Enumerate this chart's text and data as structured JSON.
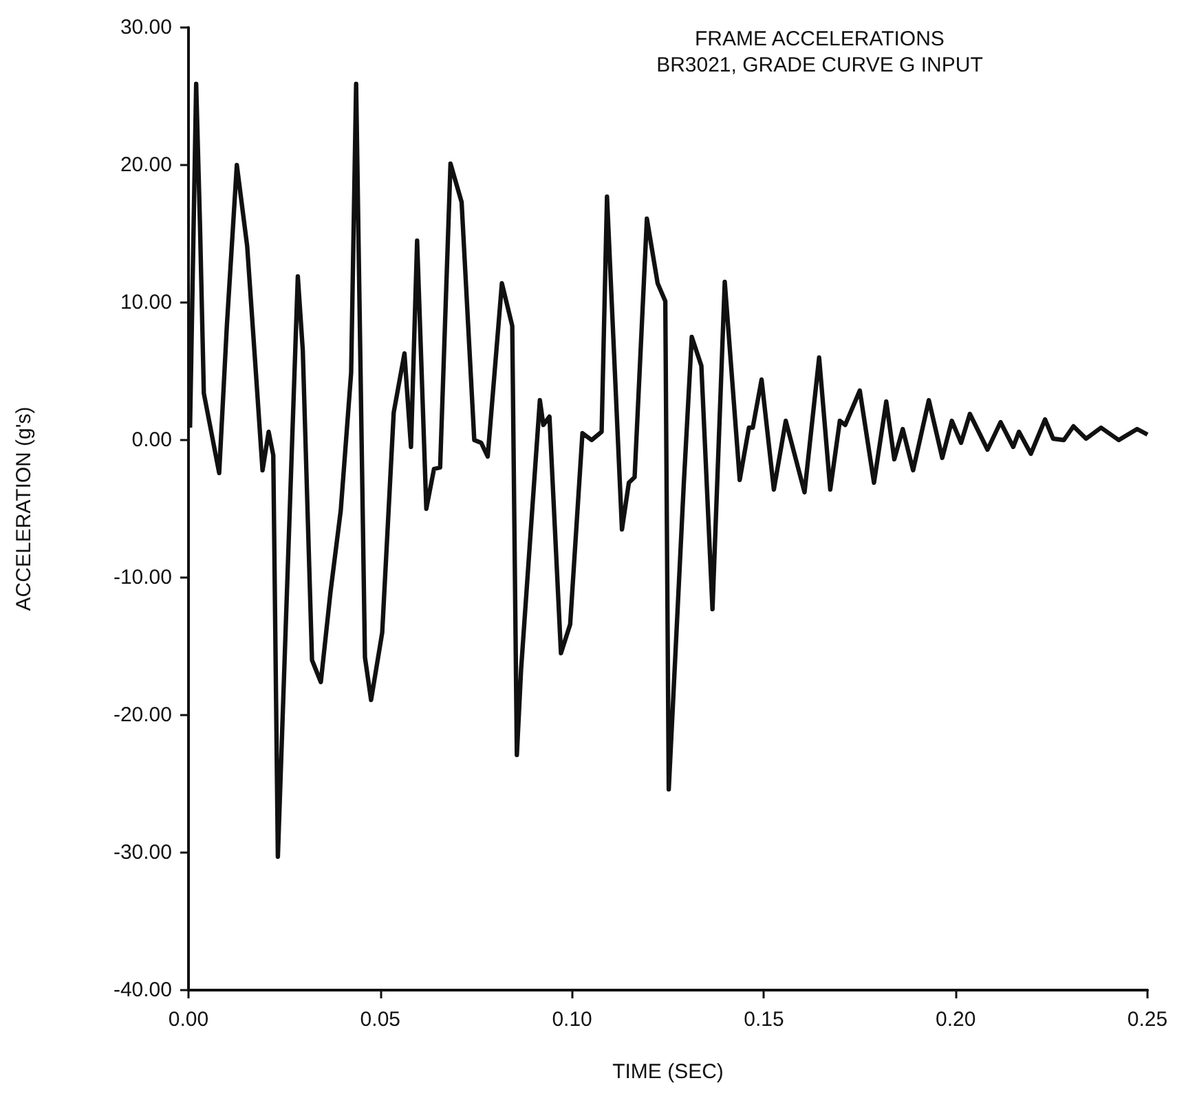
{
  "chart_data": {
    "type": "line",
    "title": "FRAME ACCELERATIONS\nBR3021, GRADE CURVE G INPUT",
    "xlabel": "TIME (SEC)",
    "ylabel": "ACCELERATION (g's)",
    "series": [
      {
        "color": "#111111",
        "x": [
          0.0004,
          0.002,
          0.003,
          0.004,
          0.008,
          0.01,
          0.0126,
          0.0153,
          0.0174,
          0.0193,
          0.0209,
          0.0221,
          0.0233,
          0.0253,
          0.0285,
          0.0298,
          0.0322,
          0.0345,
          0.037,
          0.0397,
          0.0424,
          0.0437,
          0.046,
          0.0476,
          0.0505,
          0.0535,
          0.0563,
          0.058,
          0.0596,
          0.062,
          0.064,
          0.0656,
          0.0683,
          0.0712,
          0.0745,
          0.0763,
          0.078,
          0.0817,
          0.0844,
          0.0856,
          0.0867,
          0.0916,
          0.0925,
          0.0941,
          0.0971,
          0.0995,
          0.1027,
          0.1051,
          0.1077,
          0.1091,
          0.113,
          0.1148,
          0.1163,
          0.1195,
          0.1223,
          0.1243,
          0.1252,
          0.1291,
          0.1312,
          0.1337,
          0.1366,
          0.1398,
          0.1437,
          0.1461,
          0.1471,
          0.1494,
          0.1526,
          0.1557,
          0.1606,
          0.1644,
          0.1673,
          0.1698,
          0.1712,
          0.175,
          0.1787,
          0.1819,
          0.184,
          0.1862,
          0.1889,
          0.193,
          0.1965,
          0.199,
          0.2014,
          0.2037,
          0.2083,
          0.2117,
          0.215,
          0.2165,
          0.2196,
          0.2233,
          0.2254,
          0.2282,
          0.2307,
          0.234,
          0.2379,
          0.2425,
          0.2473,
          0.25
        ],
        "values": [
          0.9,
          25.9,
          15.6,
          3.4,
          -2.4,
          8.3,
          20,
          14.1,
          5.6,
          -2.2,
          0.6,
          -1.1,
          -30.3,
          -14,
          11.9,
          6.5,
          -16,
          -17.6,
          -11.1,
          -5.1,
          4.9,
          25.9,
          -15.8,
          -18.9,
          -14,
          2,
          6.3,
          -0.5,
          14.5,
          -5,
          -2.1,
          -2,
          20.1,
          17.3,
          0,
          -0.2,
          -1.2,
          11.4,
          8.3,
          -22.9,
          -16.7,
          2.9,
          1.1,
          1.7,
          -15.5,
          -13.4,
          0.5,
          0,
          0.6,
          17.7,
          -6.5,
          -3.1,
          -2.7,
          16.1,
          11.4,
          10.1,
          -25.4,
          -3.3,
          7.5,
          5.4,
          -12.3,
          11.5,
          -2.9,
          0.9,
          0.9,
          4.4,
          -3.6,
          1.4,
          -3.8,
          6,
          -3.6,
          1.4,
          1.1,
          3.6,
          -3.1,
          2.8,
          -1.4,
          0.8,
          -2.2,
          2.9,
          -1.3,
          1.4,
          -0.2,
          1.9,
          -0.7,
          1.3,
          -0.5,
          0.6,
          -1,
          1.5,
          0.1,
          0,
          1,
          0.1,
          0.9,
          0,
          0.8,
          0.4
        ]
      }
    ],
    "xlim": [
      0,
      0.25
    ],
    "xticks": [
      {
        "value": 0,
        "label": "0.00"
      },
      {
        "value": 0.05,
        "label": "0.05"
      },
      {
        "value": 0.1,
        "label": "0.10"
      },
      {
        "value": 0.15,
        "label": "0.15"
      },
      {
        "value": 0.2,
        "label": "0.20"
      },
      {
        "value": 0.25,
        "label": "0.25"
      }
    ],
    "ylim": [
      -40,
      30
    ],
    "yticks": [
      {
        "value": -40,
        "label": "-40.00"
      },
      {
        "value": -30,
        "label": "-30.00"
      },
      {
        "value": -20,
        "label": "-20.00"
      },
      {
        "value": -10,
        "label": "-10.00"
      },
      {
        "value": 0,
        "label": "0.00"
      },
      {
        "value": 10,
        "label": "10.00"
      },
      {
        "value": 20,
        "label": "20.00"
      },
      {
        "value": 30,
        "label": "30.00"
      }
    ],
    "grid": false,
    "marker": "none",
    "line_style": "solid"
  }
}
